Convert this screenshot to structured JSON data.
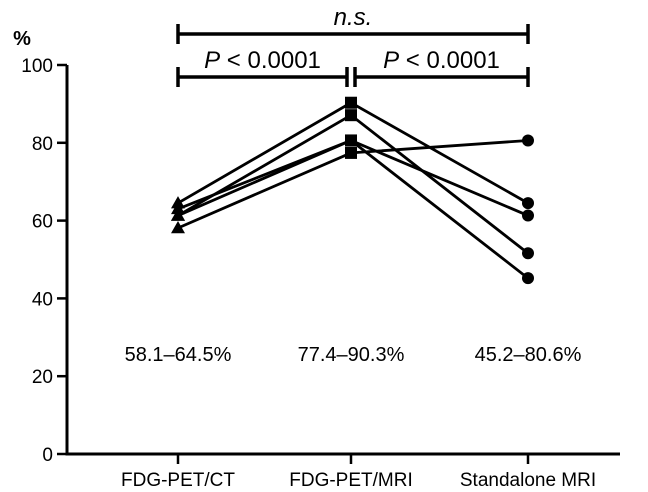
{
  "chart_data": {
    "type": "line",
    "ylabel": "%",
    "ylim": [
      0,
      100
    ],
    "yticks": [
      0,
      20,
      40,
      60,
      80,
      100
    ],
    "categories": [
      "FDG-PET/CT",
      "FDG-PET/MRI",
      "Standalone MRI"
    ],
    "markers": [
      "triangle",
      "square",
      "circle"
    ],
    "series": [
      {
        "values": [
          64.5,
          90.3,
          64.5
        ]
      },
      {
        "values": [
          61.3,
          87.1,
          51.6
        ]
      },
      {
        "values": [
          61.3,
          80.6,
          61.3
        ]
      },
      {
        "values": [
          63.0,
          80.6,
          45.2
        ]
      },
      {
        "values": [
          58.1,
          77.4,
          80.6
        ]
      }
    ],
    "range_labels": [
      "58.1–64.5%",
      "77.4–90.3%",
      "45.2–80.6%"
    ],
    "comparisons": [
      {
        "from": 0,
        "to": 2,
        "label": "n.s.",
        "italic_prefix": "n.s.",
        "rest": ""
      },
      {
        "from": 0,
        "to": 1,
        "label": "P < 0.0001",
        "italic_prefix": "P",
        "rest": " < 0.0001"
      },
      {
        "from": 1,
        "to": 2,
        "label": "P < 0.0001",
        "italic_prefix": "P",
        "rest": " < 0.0001"
      }
    ]
  }
}
